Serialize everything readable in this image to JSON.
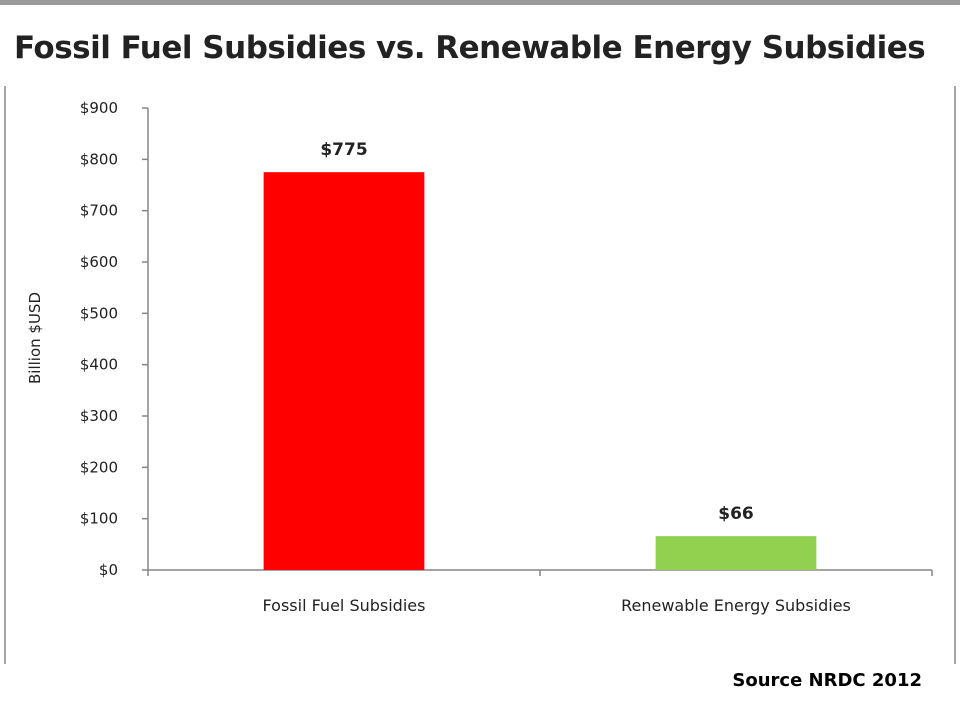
{
  "title": "Fossil Fuel Subsidies vs. Renewable Energy Subsidies",
  "source": "Source NRDC 2012",
  "colors": {
    "fossil": "#ff0000",
    "renewable": "#92d050",
    "axis": "#868686",
    "frame": "#a6a6a6"
  },
  "chart_data": {
    "type": "bar",
    "title": "",
    "xlabel": "",
    "ylabel": "Billion $USD",
    "categories": [
      "Fossil Fuel Subsidies",
      "Renewable Energy Subsidies"
    ],
    "values": [
      775,
      66
    ],
    "data_labels": [
      "$775",
      "$66"
    ],
    "bar_colors": [
      "#ff0000",
      "#92d050"
    ],
    "ylim": [
      0,
      900
    ],
    "yticks": [
      0,
      100,
      200,
      300,
      400,
      500,
      600,
      700,
      800,
      900
    ],
    "ytick_labels": [
      "$0",
      "$100",
      "$200",
      "$300",
      "$400",
      "$500",
      "$600",
      "$700",
      "$800",
      "$900"
    ],
    "grid": false,
    "legend": "none"
  }
}
